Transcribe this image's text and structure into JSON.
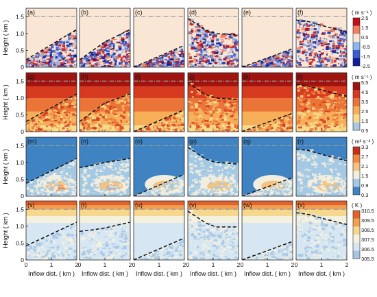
{
  "figure": {
    "ylabel": "Height ( km )",
    "xlabel": "Inflow dist. ( km )",
    "x_ticks": [
      "0",
      "1",
      "2"
    ],
    "y_ticks": [
      "0",
      "0.5",
      "1.0",
      "1.5"
    ]
  },
  "chart_data": [
    {
      "type": "heatmap",
      "row": "w",
      "panels": [
        "(a)",
        "(b)",
        "(c)",
        "(d)",
        "(e)",
        "(f)"
      ],
      "colorbar_unit": "( m s⁻¹ )",
      "colorbar_ticks": [
        "2.5",
        "1.5",
        "0.5",
        "-0.5",
        "-1.5",
        "-2.5"
      ],
      "colors": [
        "#0f1f9a",
        "#3a5fd0",
        "#8fb6ec",
        "#fae6d4",
        "#f08060",
        "#c01018"
      ],
      "xlim": [
        0,
        2
      ],
      "ylim": [
        0,
        1.75
      ],
      "ref_height_km": 1.5,
      "boundary_lines": [
        {
          "x": [
            0,
            2
          ],
          "y": [
            0.22,
            1.12
          ]
        },
        {
          "x": [
            0,
            1,
            2
          ],
          "y": [
            0.22,
            0.75,
            1.12
          ]
        },
        {
          "x": [
            0,
            2
          ],
          "y": [
            0.0,
            0.65
          ]
        },
        {
          "x": [
            0,
            0.3,
            0.7,
            1.1,
            1.5,
            2
          ],
          "y": [
            1.45,
            1.3,
            1.1,
            1.0,
            0.98,
            0.95
          ]
        },
        {
          "x": [
            0,
            2
          ],
          "y": [
            0.0,
            0.55
          ]
        },
        {
          "x": [
            0,
            0.5,
            1.2,
            2
          ],
          "y": [
            1.4,
            1.35,
            1.2,
            1.05
          ]
        }
      ]
    },
    {
      "type": "heatmap",
      "row": "speed",
      "panels": [
        "(g)",
        "(h)",
        "(i)",
        "(j)",
        "(k)",
        "(l)"
      ],
      "colorbar_unit": "( m s⁻¹ )",
      "colorbar_ticks": [
        "5.5",
        "4.5",
        "3.5",
        "2.5",
        "1.5",
        "0.5"
      ],
      "colors": [
        "#a8c8e4",
        "#f6dc8a",
        "#f6ae58",
        "#eb7438",
        "#d63a20",
        "#a01410"
      ],
      "xlim": [
        0,
        2
      ],
      "ylim": [
        0,
        1.75
      ],
      "ref_height_km": 1.5,
      "boundary_lines": [
        {
          "x": [
            0,
            2
          ],
          "y": [
            0.3,
            1.12
          ]
        },
        {
          "x": [
            0,
            1,
            2
          ],
          "y": [
            0.3,
            0.85,
            1.12
          ]
        },
        {
          "x": [
            0,
            2
          ],
          "y": [
            0.0,
            0.65
          ]
        },
        {
          "x": [
            0,
            0.3,
            0.7,
            1.1,
            1.5,
            2
          ],
          "y": [
            1.45,
            1.3,
            1.1,
            1.0,
            0.98,
            0.95
          ]
        },
        {
          "x": [
            0,
            2
          ],
          "y": [
            0.0,
            0.55
          ]
        },
        {
          "x": [
            0,
            0.5,
            1.2,
            2
          ],
          "y": [
            1.4,
            1.35,
            1.2,
            1.05
          ]
        }
      ]
    },
    {
      "type": "heatmap",
      "row": "tke",
      "panels": [
        "(m)",
        "(n)",
        "(o)",
        "(p)",
        "(q)",
        "(r)"
      ],
      "colorbar_unit": "( m² s⁻² )",
      "colorbar_ticks": [
        "3.3",
        "2.7",
        "2.1",
        "1.5",
        "0.9",
        "0.3"
      ],
      "colors": [
        "#3f83c2",
        "#a4c9e4",
        "#f2eedf",
        "#f5c380",
        "#ef8a40",
        "#c43018"
      ],
      "xlim": [
        0,
        2
      ],
      "ylim": [
        0,
        1.75
      ],
      "ref_height_km": 1.5,
      "boundary_lines": [
        {
          "x": [
            0,
            2
          ],
          "y": [
            0.38,
            1.12
          ]
        },
        {
          "x": [
            0,
            0.4,
            1.0,
            2
          ],
          "y": [
            0.85,
            0.9,
            1.0,
            1.12
          ]
        },
        {
          "x": [
            0,
            2
          ],
          "y": [
            0.0,
            0.65
          ]
        },
        {
          "x": [
            0,
            0.3,
            0.7,
            1.1,
            1.5,
            2
          ],
          "y": [
            1.45,
            1.3,
            1.1,
            1.0,
            0.98,
            0.95
          ]
        },
        {
          "x": [
            0,
            2
          ],
          "y": [
            0.0,
            0.55
          ]
        },
        {
          "x": [
            0,
            0.5,
            1.2,
            2
          ],
          "y": [
            1.4,
            1.35,
            1.2,
            1.05
          ]
        }
      ]
    },
    {
      "type": "heatmap",
      "row": "theta",
      "panels": [
        "(s)",
        "(t)",
        "(u)",
        "(v)",
        "(w)",
        "(x)"
      ],
      "colorbar_unit": "( K )",
      "colorbar_ticks": [
        "310.5",
        "309.5",
        "308.5",
        "307.5",
        "306.5",
        "305.5"
      ],
      "colors": [
        "#a5c5e4",
        "#d6e6f2",
        "#f5f1df",
        "#f5d78e",
        "#f2a050",
        "#e2622c"
      ],
      "xlim": [
        0,
        2
      ],
      "ylim": [
        0,
        1.75
      ],
      "ref_height_km": 1.5,
      "boundary_lines": [
        {
          "x": [
            0,
            2
          ],
          "y": [
            0.42,
            1.12
          ]
        },
        {
          "x": [
            0,
            0.4,
            1.0,
            2
          ],
          "y": [
            0.85,
            0.88,
            0.95,
            1.12
          ]
        },
        {
          "x": [
            0,
            2
          ],
          "y": [
            0.0,
            0.65
          ]
        },
        {
          "x": [
            0,
            0.3,
            0.7,
            1.1,
            1.5,
            2
          ],
          "y": [
            1.45,
            1.3,
            1.1,
            0.98,
            0.98,
            0.98
          ]
        },
        {
          "x": [
            0,
            2
          ],
          "y": [
            0.0,
            0.55
          ]
        },
        {
          "x": [
            0,
            0.5,
            1.2,
            2
          ],
          "y": [
            1.4,
            1.35,
            1.2,
            1.05
          ]
        }
      ]
    }
  ]
}
